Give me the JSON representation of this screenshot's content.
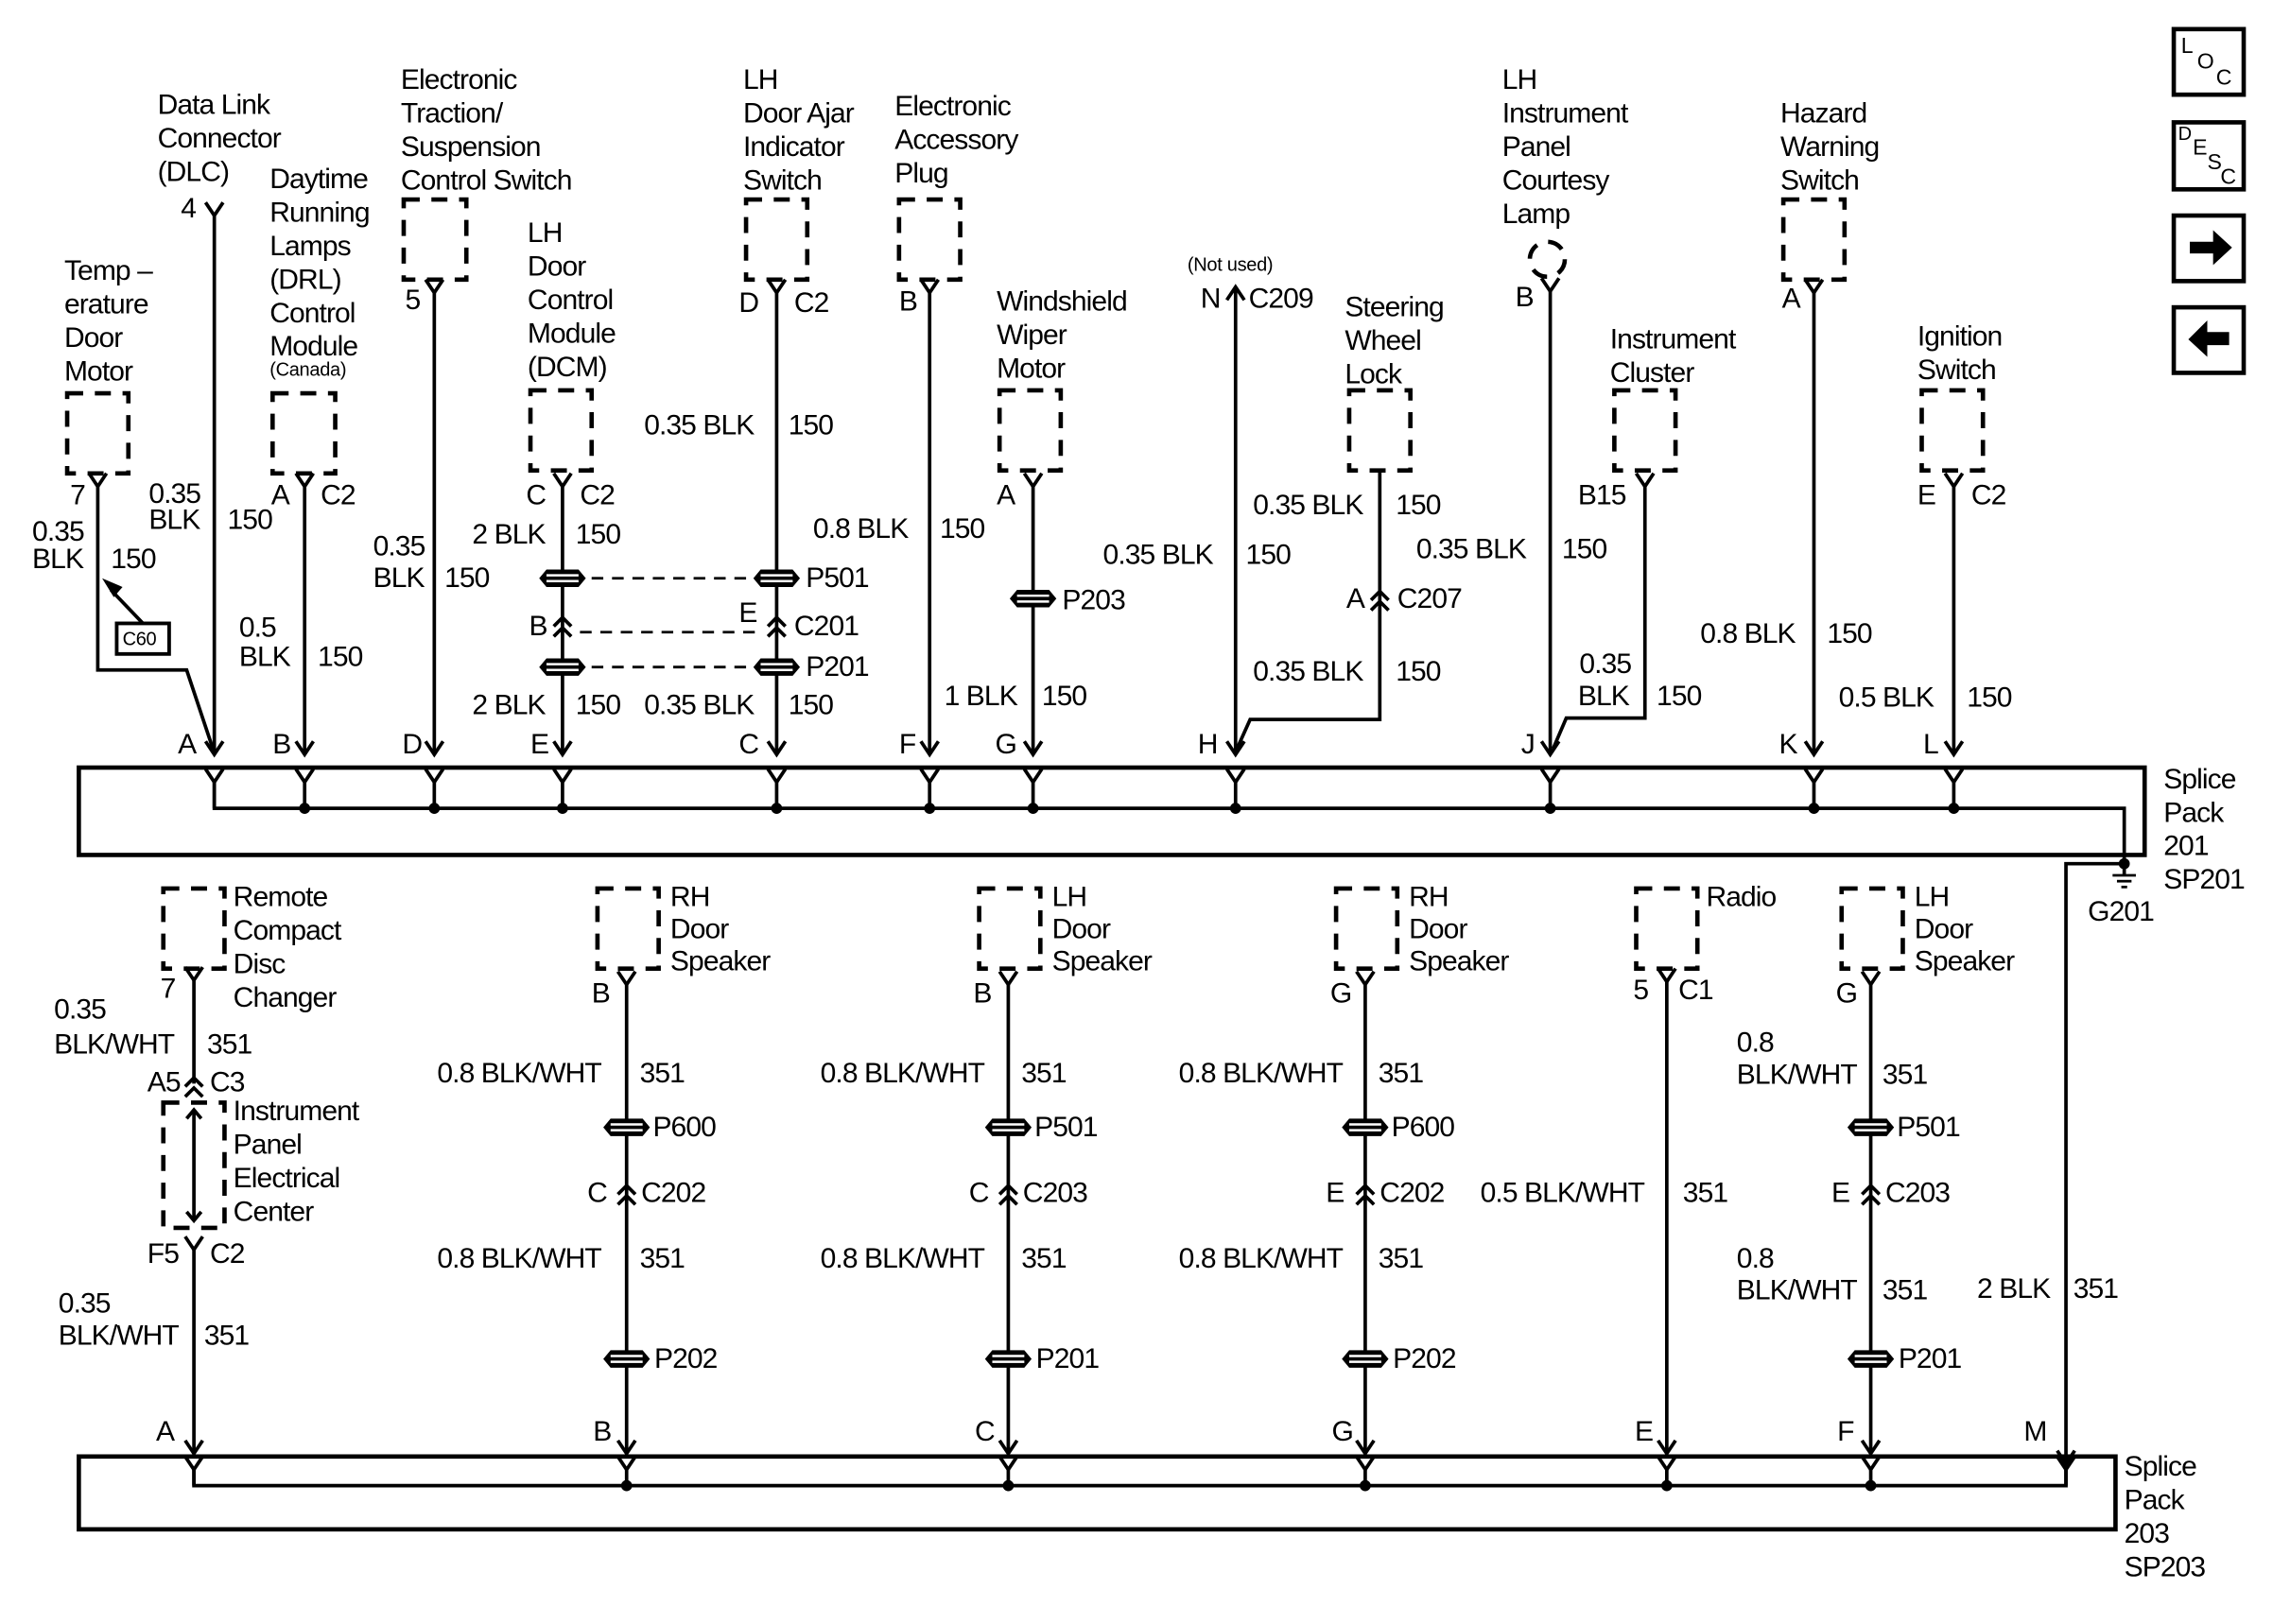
{
  "nav": {
    "loc": [
      "L",
      "O",
      "C"
    ],
    "desc": [
      "D",
      "E",
      "S",
      "C"
    ],
    "icons": {
      "loc": "location-icon",
      "desc": "description-icon",
      "next": "arrow-right-icon",
      "prev": "arrow-left-icon"
    }
  },
  "top": {
    "temp_door_motor": {
      "name": [
        "Temp –",
        "erature",
        "Door",
        "Motor"
      ],
      "pin": "7",
      "wire": [
        "0.35",
        "BLK"
      ],
      "circuit": "150",
      "callout": "C60"
    },
    "dlc": {
      "name": [
        "Data Link",
        "Connector",
        "(DLC)"
      ],
      "pin": "4",
      "wire": [
        "0.35",
        "BLK"
      ],
      "circuit": "150",
      "splice_pin": "A"
    },
    "drl": {
      "name": [
        "Daytime",
        "Running",
        "Lamps",
        "(DRL)",
        "Control",
        "Module"
      ],
      "note": "(Canada)",
      "pin": "A",
      "connector": "C2",
      "wire": [
        "0.5",
        "BLK"
      ],
      "circuit": "150",
      "splice_pin": "B"
    },
    "traction": {
      "name": [
        "Electronic",
        "Traction/",
        "Suspension",
        "Control Switch"
      ],
      "pin": "5",
      "wire": [
        "0.35",
        "BLK"
      ],
      "circuit": "150",
      "splice_pin": "D"
    },
    "dcm": {
      "name": [
        "LH",
        "Door",
        "Control",
        "Module",
        "(DCM)"
      ],
      "pin": "C",
      "connector": "C2",
      "wire_upper": "2 BLK",
      "wire_lower": "2 BLK",
      "circuit": "150",
      "inline_pin": "B",
      "splice_pin": "E"
    },
    "door_ajar": {
      "name": [
        "LH",
        "Door Ajar",
        "Indicator",
        "Switch"
      ],
      "pin": "D",
      "connector": "C2",
      "wire_upper": "0.35 BLK",
      "wire_lower": "0.35 BLK",
      "circuit": "150",
      "inline_pin": "E",
      "splice_pin": "C"
    },
    "inline": {
      "p501": "P501",
      "c201": "C201",
      "p201": "P201"
    },
    "accessory_plug": {
      "name": [
        "Electronic",
        "Accessory",
        "Plug"
      ],
      "pin": "B",
      "wire": "0.8 BLK",
      "circuit": "150",
      "splice_pin": "F"
    },
    "wiper": {
      "name": [
        "Windshield",
        "Wiper",
        "Motor"
      ],
      "pin": "A",
      "inline": "P203",
      "wire": "1 BLK",
      "circuit": "150",
      "splice_pin": "G"
    },
    "c209": {
      "note": "(Not used)",
      "pin": "N",
      "connector": "C209",
      "wire": "0.35 BLK",
      "circuit": "150",
      "splice_pin": "H"
    },
    "steering_lock": {
      "name": [
        "Steering",
        "Wheel",
        "Lock"
      ],
      "wire_upper": "0.35 BLK",
      "inline_pin": "A",
      "inline": "C207",
      "wire_lower": "0.35 BLK",
      "circuit": "150"
    },
    "courtesy_lamp": {
      "name": [
        "LH",
        "Instrument",
        "Panel",
        "Courtesy",
        "Lamp"
      ],
      "pin": "B",
      "wire": "0.35 BLK",
      "circuit": "150",
      "splice_pin": "J"
    },
    "cluster": {
      "name": [
        "Instrument",
        "Cluster"
      ],
      "pin": "B15",
      "wire": [
        "0.35",
        "BLK"
      ],
      "circuit": "150"
    },
    "hazard": {
      "name": [
        "Hazard",
        "Warning",
        "Switch"
      ],
      "pin": "A",
      "wire": "0.8 BLK",
      "circuit": "150",
      "splice_pin": "K"
    },
    "ignition": {
      "name": [
        "Ignition",
        "Switch"
      ],
      "pin": "E",
      "connector": "C2",
      "wire": "0.5 BLK",
      "circuit": "150",
      "splice_pin": "L"
    }
  },
  "sp201": {
    "label": [
      "Splice",
      "Pack",
      "201",
      "SP201"
    ],
    "ground": "G201"
  },
  "bottom": {
    "cd_changer": {
      "name": [
        "Remote",
        "Compact",
        "Disc",
        "Changer"
      ],
      "pin": "7",
      "wire_upper": [
        "0.35",
        "BLK/WHT"
      ],
      "circuit": "351",
      "ipec_pin_in": "A5",
      "ipec_conn_in": "C3",
      "ipec_name": [
        "Instrument",
        "Panel",
        "Electrical",
        "Center"
      ],
      "ipec_pin_out": "F5",
      "ipec_conn_out": "C2",
      "wire_lower": [
        "0.35",
        "BLK/WHT"
      ],
      "splice_pin": "A"
    },
    "rh_speaker_1": {
      "name": [
        "RH",
        "Door",
        "Speaker"
      ],
      "pin": "B",
      "wire_upper": "0.8 BLK/WHT",
      "circuit": "351",
      "inline_top": "P600",
      "inline_pin": "C",
      "inline_conn": "C202",
      "wire_lower": "0.8 BLK/WHT",
      "inline_bottom": "P202",
      "splice_pin": "B"
    },
    "lh_speaker_1": {
      "name": [
        "LH",
        "Door",
        "Speaker"
      ],
      "pin": "B",
      "wire_upper": "0.8 BLK/WHT",
      "circuit": "351",
      "inline_top": "P501",
      "inline_pin": "C",
      "inline_conn": "C203",
      "wire_lower": "0.8 BLK/WHT",
      "inline_bottom": "P201",
      "splice_pin": "C"
    },
    "rh_speaker_2": {
      "name": [
        "RH",
        "Door",
        "Speaker"
      ],
      "pin": "G",
      "wire_upper": "0.8 BLK/WHT",
      "circuit": "351",
      "inline_top": "P600",
      "inline_pin": "E",
      "inline_conn": "C202",
      "wire_lower": "0.8 BLK/WHT",
      "inline_bottom": "P202",
      "splice_pin": "G"
    },
    "radio": {
      "name": [
        "Radio"
      ],
      "pin": "5",
      "connector": "C1",
      "wire": "0.5 BLK/WHT",
      "circuit": "351",
      "splice_pin": "E"
    },
    "lh_speaker_2": {
      "name": [
        "LH",
        "Door",
        "Speaker"
      ],
      "pin": "G",
      "wire_upper": [
        "0.8",
        "BLK/WHT"
      ],
      "circuit": "351",
      "inline_top": "P501",
      "inline_pin": "E",
      "inline_conn": "C203",
      "wire_lower": [
        "0.8",
        "BLK/WHT"
      ],
      "inline_bottom": "P201",
      "splice_pin": "F"
    },
    "ground_wire": {
      "wire": "2 BLK",
      "circuit": "351",
      "splice_pin": "M"
    }
  },
  "sp203": {
    "label": [
      "Splice",
      "Pack",
      "203",
      "SP203"
    ]
  }
}
